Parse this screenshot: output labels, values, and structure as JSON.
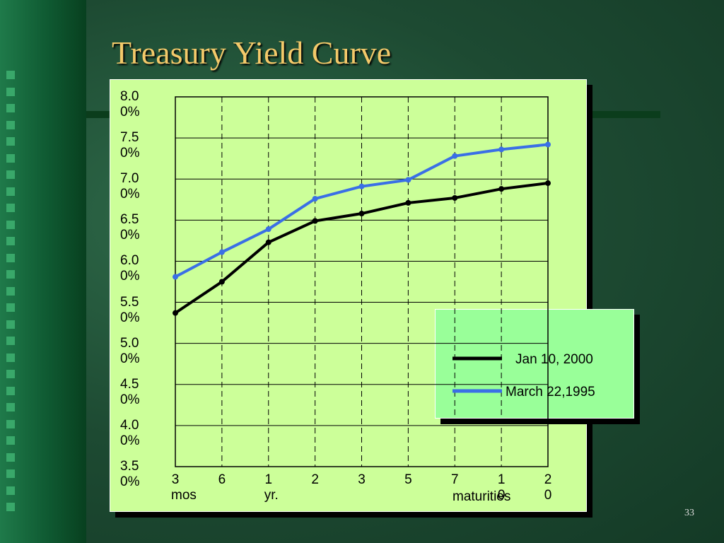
{
  "title": "Treasury Yield Curve",
  "page_number": "33",
  "chart_data": {
    "type": "line",
    "categories": [
      "3 mos",
      "6",
      "1 yr.",
      "2",
      "3",
      "5",
      "7",
      "10",
      "20"
    ],
    "x_label": "maturities",
    "ylim": [
      3.5,
      8
    ],
    "yticks": [
      {
        "value": 3.5,
        "label": "3.50%"
      },
      {
        "value": 4,
        "label": "4.00%"
      },
      {
        "value": 4.5,
        "label": "4.50%"
      },
      {
        "value": 5,
        "label": "5.00%"
      },
      {
        "value": 5.5,
        "label": "5.50%"
      },
      {
        "value": 6,
        "label": "6.00%"
      },
      {
        "value": 6.5,
        "label": "6.50%"
      },
      {
        "value": 7,
        "label": "7.00%"
      },
      {
        "value": 7.5,
        "label": "7.50%"
      },
      {
        "value": 8,
        "label": "8.00%"
      }
    ],
    "grid": true,
    "series": [
      {
        "name": "Jan 10, 2000",
        "color": "#000000",
        "values": [
          5.37,
          5.75,
          6.23,
          6.49,
          6.58,
          6.71,
          6.77,
          6.88,
          6.95
        ]
      },
      {
        "name": "March 22,1995",
        "color": "#3a6fe6",
        "values": [
          5.81,
          6.11,
          6.39,
          6.76,
          6.91,
          6.99,
          7.28,
          7.36,
          7.42
        ]
      }
    ]
  }
}
